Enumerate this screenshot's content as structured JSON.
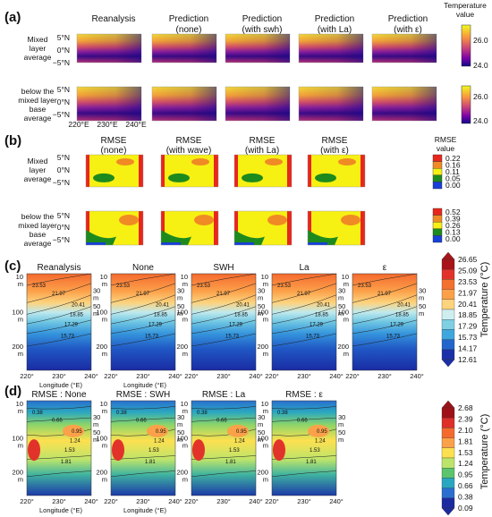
{
  "panels": {
    "a": {
      "label": "(a)",
      "headers": [
        [
          "Reanalysis"
        ],
        [
          "Prediction",
          "(none)"
        ],
        [
          "Prediction",
          "(with swh)"
        ],
        [
          "Prediction",
          "(with La)"
        ],
        [
          "Prediction",
          "(with ε)"
        ]
      ],
      "rows": [
        [
          "Mixed",
          "layer",
          "average"
        ],
        [
          "below the",
          "mixed layer",
          "base",
          "average"
        ]
      ],
      "lat_ticks": [
        "5°N",
        "0°N",
        "−5°N"
      ],
      "lat_ticks_b": [
        "5°N",
        "0°N",
        "−5°N"
      ],
      "lon_ticks": [
        "220°E",
        "230°E",
        "240°E"
      ],
      "colorbar": {
        "title": [
          "Temperature",
          "value"
        ],
        "ticks": [
          "26.0",
          "24.0"
        ]
      }
    },
    "b": {
      "label": "(b)",
      "headers": [
        [
          "RMSE",
          "(none)"
        ],
        [
          "RMSE",
          "(with wave)"
        ],
        [
          "RMSE",
          "(with La)"
        ],
        [
          "RMSE",
          "(with ε)"
        ]
      ],
      "rows": [
        [
          "Mixed",
          "layer",
          "average"
        ],
        [
          "below the",
          "mixed layer",
          "base",
          "average"
        ]
      ],
      "lat_ticks": [
        "5°N",
        "0°N",
        "−5°N"
      ],
      "lat_ticks_b": [
        "5°N",
        "0°N",
        "−5°N"
      ],
      "colorbar1": {
        "title": [
          "RMSE",
          "value"
        ],
        "ticks": [
          "0.22",
          "0.16",
          "0.11",
          "0.05",
          "0.00"
        ],
        "colors": [
          "#e8261c",
          "#f08a24",
          "#f7f013",
          "#1d8a1d",
          "#1740d8"
        ]
      },
      "colorbar2": {
        "ticks": [
          "0.52",
          "0.39",
          "0.26",
          "0.13",
          "0.00"
        ],
        "colors": [
          "#e8261c",
          "#f08a24",
          "#f7f013",
          "#1d8a1d",
          "#1740d8"
        ]
      }
    },
    "c": {
      "label": "(c)",
      "titles": [
        "Reanalysis",
        "None",
        "SWH",
        "La",
        "ε"
      ],
      "y_ticks": [
        "10",
        "m",
        "100",
        "m",
        "200",
        "m"
      ],
      "right_ticks": [
        "30",
        "m",
        "50",
        "m"
      ],
      "x_ticks": [
        "220°",
        "230°",
        "240°"
      ],
      "xlabel": "Longitude (°E)",
      "contour_labels": [
        "21.97",
        "20.41",
        "18.85",
        "17.29",
        "15.73",
        "23.53"
      ],
      "colorbar": {
        "title": "Temperature (°C)",
        "ticks": [
          "26.65",
          "25.09",
          "23.53",
          "21.97",
          "20.41",
          "18.85",
          "17.29",
          "15.73",
          "14.17",
          "12.61"
        ],
        "colors": [
          "#a8141a",
          "#e2332a",
          "#f4702f",
          "#fca14a",
          "#fdd37d",
          "#cfeef0",
          "#7fd0e3",
          "#3fa7dd",
          "#2266cc",
          "#1a2fa8"
        ]
      }
    },
    "d": {
      "label": "(d)",
      "titles": [
        "RMSE : None",
        "RMSE : SWH",
        "RMSE : La",
        "RMSE : ε"
      ],
      "y_ticks": [
        "10",
        "m",
        "100",
        "m",
        "200",
        "m"
      ],
      "right_ticks": [
        "30",
        "m",
        "50",
        "m"
      ],
      "x_ticks": [
        "220°",
        "230°",
        "240°"
      ],
      "xlabel": "Longitude (°E)",
      "contour_labels": [
        "0.66",
        "0.95",
        "1.24",
        "1.53",
        "1.81",
        "0.38"
      ],
      "colorbar": {
        "title": "Temperature (°C)",
        "ticks": [
          "2.68",
          "2.39",
          "2.10",
          "1.81",
          "1.53",
          "1.24",
          "0.95",
          "0.66",
          "0.38",
          "0.09"
        ],
        "colors": [
          "#9e1118",
          "#de2f2a",
          "#f46a2e",
          "#fba14a",
          "#fde050",
          "#bde46a",
          "#5cc46c",
          "#2aa7c0",
          "#2a6fd0",
          "#1c2aa0"
        ]
      }
    }
  },
  "chart_data": [
    {
      "type": "heatmap",
      "panel": "a",
      "title": "Temperature value (mixed layer average and below mixed layer base average)",
      "xlabel": "",
      "ylabel": "",
      "x_range": [
        220,
        240
      ],
      "y_range": [
        -5,
        5
      ],
      "value_range": [
        24.0,
        26.0
      ],
      "colormap": "plasma"
    },
    {
      "type": "heatmap",
      "panel": "b",
      "title": "RMSE value",
      "x_range": [
        220,
        240
      ],
      "y_range": [
        -5,
        5
      ],
      "value_range_mixed": [
        0.0,
        0.22
      ],
      "value_range_below": [
        0.0,
        0.52
      ]
    },
    {
      "type": "heatmap",
      "panel": "c",
      "xlabel": "Longitude (°E)",
      "x_range": [
        220,
        240
      ],
      "depth_ticks": [
        "10 m",
        "100 m",
        "200 m"
      ],
      "value_range": [
        12.61,
        26.65
      ]
    },
    {
      "type": "heatmap",
      "panel": "d",
      "xlabel": "Longitude (°E)",
      "x_range": [
        220,
        240
      ],
      "depth_ticks": [
        "10 m",
        "100 m",
        "200 m"
      ],
      "value_range": [
        0.09,
        2.68
      ]
    }
  ]
}
